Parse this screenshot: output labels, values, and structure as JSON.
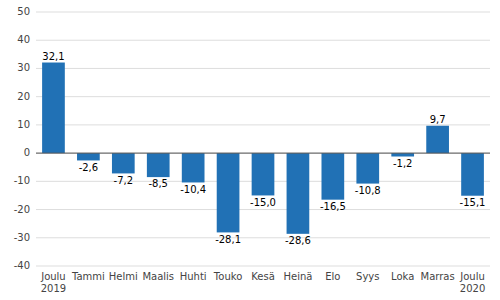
{
  "chart_data": {
    "type": "bar",
    "categories": [
      "Joulu\n2019",
      "Tammi",
      "Helmi",
      "Maalis",
      "Huhti",
      "Touko",
      "Kesä",
      "Heinä",
      "Elo",
      "Syys",
      "Loka",
      "Marras",
      "Joulu\n2020"
    ],
    "values": [
      32.1,
      -2.6,
      -7.2,
      -8.5,
      -10.4,
      -28.1,
      -15.0,
      -28.6,
      -16.5,
      -10.8,
      -1.2,
      9.7,
      -15.1
    ],
    "value_labels": [
      "32,1",
      "-2,6",
      "-7,2",
      "-8,5",
      "-10,4",
      "-28,1",
      "-15,0",
      "-28,6",
      "-16,5",
      "-10,8",
      "-1,2",
      "9,7",
      "-15,1"
    ],
    "color": "#2171b5",
    "ylim": [
      -40,
      50
    ],
    "yticks": [
      -40,
      -30,
      -20,
      -10,
      0,
      10,
      20,
      30,
      40,
      50
    ],
    "grid": true,
    "data_labels": true
  }
}
